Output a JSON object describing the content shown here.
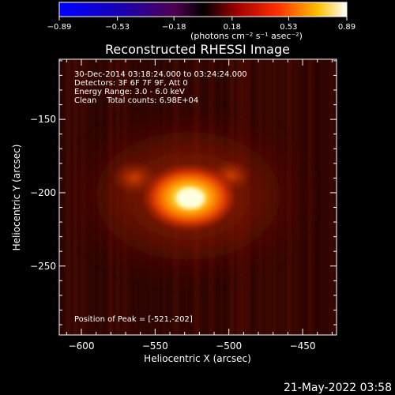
{
  "chart_data": {
    "type": "heatmap",
    "title": "Reconstructed RHESSI Image",
    "xlabel": "Heliocentric X (arcsec)",
    "ylabel": "Heliocentric Y (arcsec)",
    "xlim": [
      -615,
      -427
    ],
    "ylim": [
      -297,
      -109
    ],
    "x_ticks": [
      {
        "value": -600,
        "label": "−600"
      },
      {
        "value": -550,
        "label": "−550"
      },
      {
        "value": -500,
        "label": "−500"
      },
      {
        "value": -450,
        "label": "−450"
      }
    ],
    "y_ticks": [
      {
        "value": -150,
        "label": "−150"
      },
      {
        "value": -200,
        "label": "−200"
      },
      {
        "value": -250,
        "label": "−250"
      }
    ],
    "colorbar": {
      "min": -0.89,
      "max": 0.89,
      "ticks": [
        {
          "value": -0.89,
          "label": "−0.89"
        },
        {
          "value": -0.53,
          "label": "−0.53"
        },
        {
          "value": -0.18,
          "label": "−0.18"
        },
        {
          "value": 0.18,
          "label": "0.18"
        },
        {
          "value": 0.53,
          "label": "0.53"
        },
        {
          "value": 0.89,
          "label": "0.89"
        }
      ],
      "units": "(photons cm⁻² s⁻¹ asec⁻²)"
    },
    "peak": {
      "x": -521,
      "y": -202
    },
    "annotations": [
      "30-Dec-2014 03:18:24.000 to 03:24:24.000",
      "Detectors: 3F 6F 7F 9F, Att 0",
      "Energy Range: 3.0 - 6.0 keV",
      "Clean    Total counts: 6.98E+04",
      "Position of Peak = [-521,-202]"
    ]
  },
  "footer": {
    "timestamp": "21-May-2022 03:58"
  }
}
